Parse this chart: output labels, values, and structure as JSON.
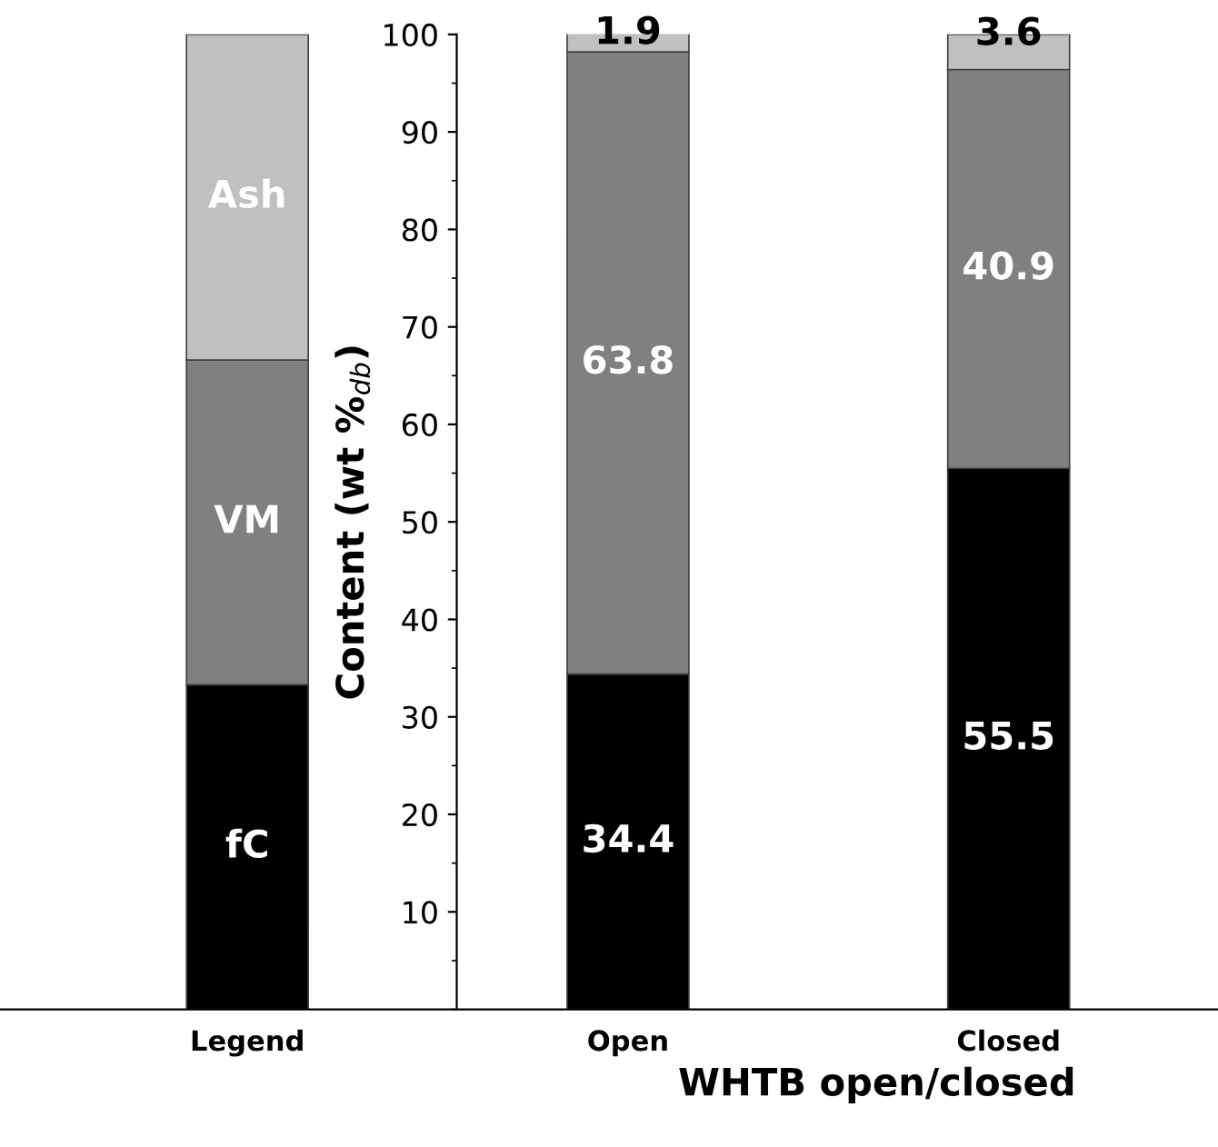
{
  "chart_data": {
    "type": "bar",
    "stacked": true,
    "categories": [
      "Legend",
      "Open",
      "Closed"
    ],
    "series": [
      {
        "name": "fC",
        "color": "#000000",
        "values": [
          33.3,
          34.4,
          55.5
        ],
        "value_labels": [
          null,
          "34.4",
          "55.5"
        ]
      },
      {
        "name": "VM",
        "color": "#808080",
        "values": [
          33.3,
          63.8,
          40.9
        ],
        "value_labels": [
          null,
          "63.8",
          "40.9"
        ]
      },
      {
        "name": "Ash",
        "color": "#c0c0c0",
        "values": [
          33.4,
          1.9,
          3.6
        ],
        "value_labels": [
          null,
          "1.9",
          "3.6"
        ]
      }
    ],
    "xlabel": "WHTB open/closed",
    "ylabel": "Content (wt %$_{db}$)",
    "ylim": [
      0,
      100
    ],
    "yticks": [
      10,
      20,
      30,
      40,
      50,
      60,
      70,
      80,
      90,
      100
    ],
    "grid": false,
    "legend": false
  }
}
